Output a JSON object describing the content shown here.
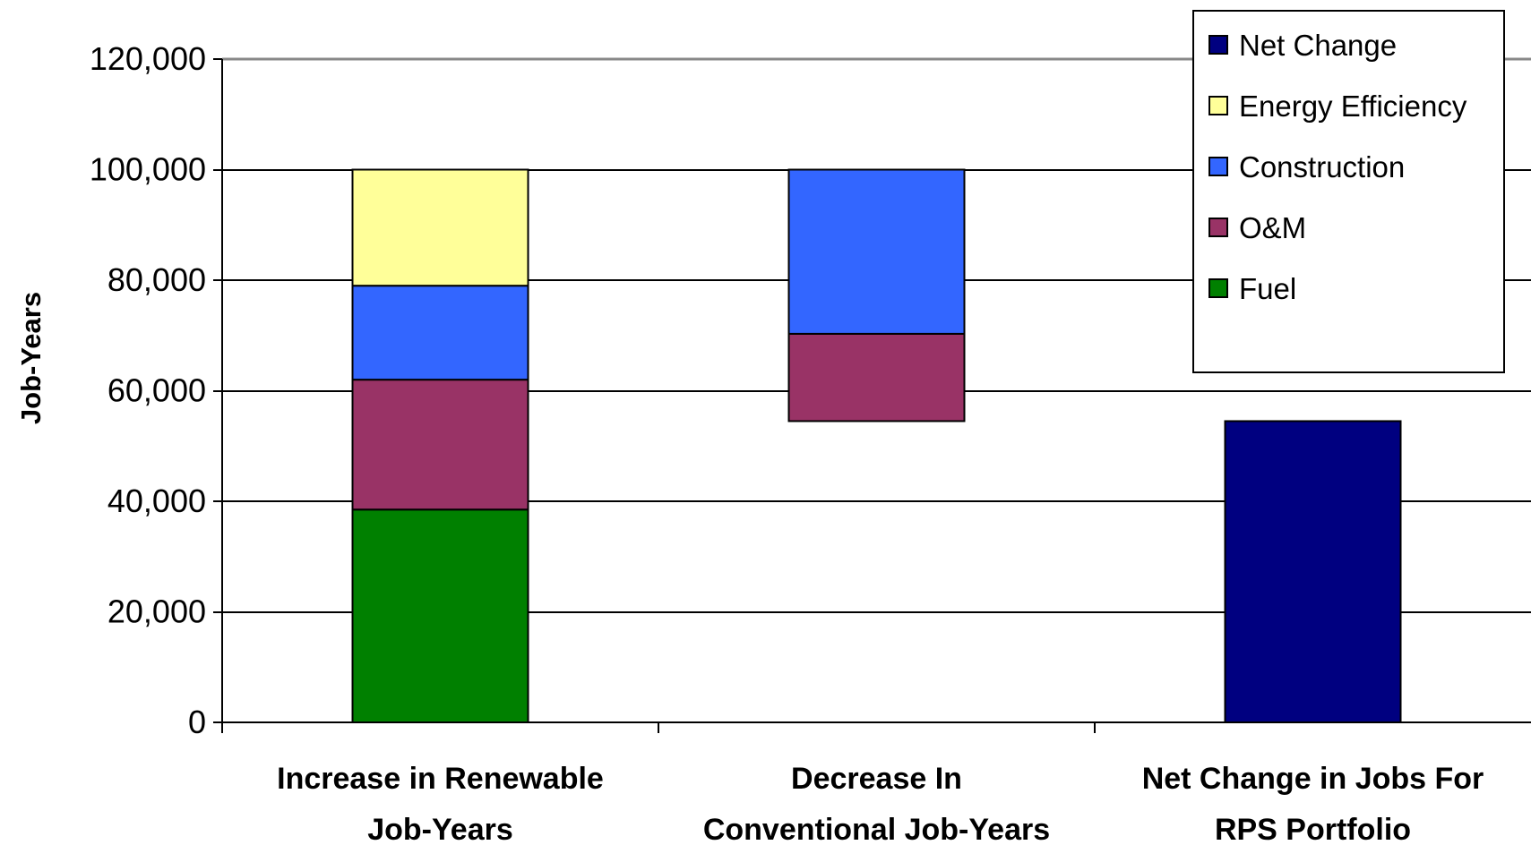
{
  "chart_data": {
    "type": "bar",
    "stacked": true,
    "floating": true,
    "ylabel": "Job-Years",
    "xlabel": "",
    "ylim": [
      0,
      120000
    ],
    "y_ticks": [
      0,
      20000,
      40000,
      60000,
      80000,
      100000,
      120000
    ],
    "y_tick_labels": [
      "0",
      "20,000",
      "40,000",
      "60,000",
      "80,000",
      "100,000",
      "120,000"
    ],
    "grid": true,
    "legend_position": "top-right",
    "categories": [
      [
        "Increase in Renewable",
        "Job-Years"
      ],
      [
        "Decrease In",
        "Conventional Job-Years"
      ],
      [
        "Net Change in Jobs For",
        "RPS Portfolio"
      ]
    ],
    "series": [
      {
        "name": "Net Change",
        "color": "#000080",
        "segments": [
          null,
          null,
          [
            0,
            54500
          ]
        ]
      },
      {
        "name": "Energy Efficiency",
        "color": "#FFFF99",
        "segments": [
          [
            79000,
            100000
          ],
          null,
          null
        ]
      },
      {
        "name": "Construction",
        "color": "#3366FF",
        "segments": [
          [
            62000,
            79000
          ],
          [
            70300,
            100000
          ],
          null
        ]
      },
      {
        "name": "O&M",
        "color": "#993366",
        "segments": [
          [
            38500,
            62000
          ],
          [
            54500,
            70300
          ],
          null
        ]
      },
      {
        "name": "Fuel",
        "color": "#008000",
        "segments": [
          [
            0,
            38500
          ],
          null,
          null
        ]
      }
    ]
  }
}
